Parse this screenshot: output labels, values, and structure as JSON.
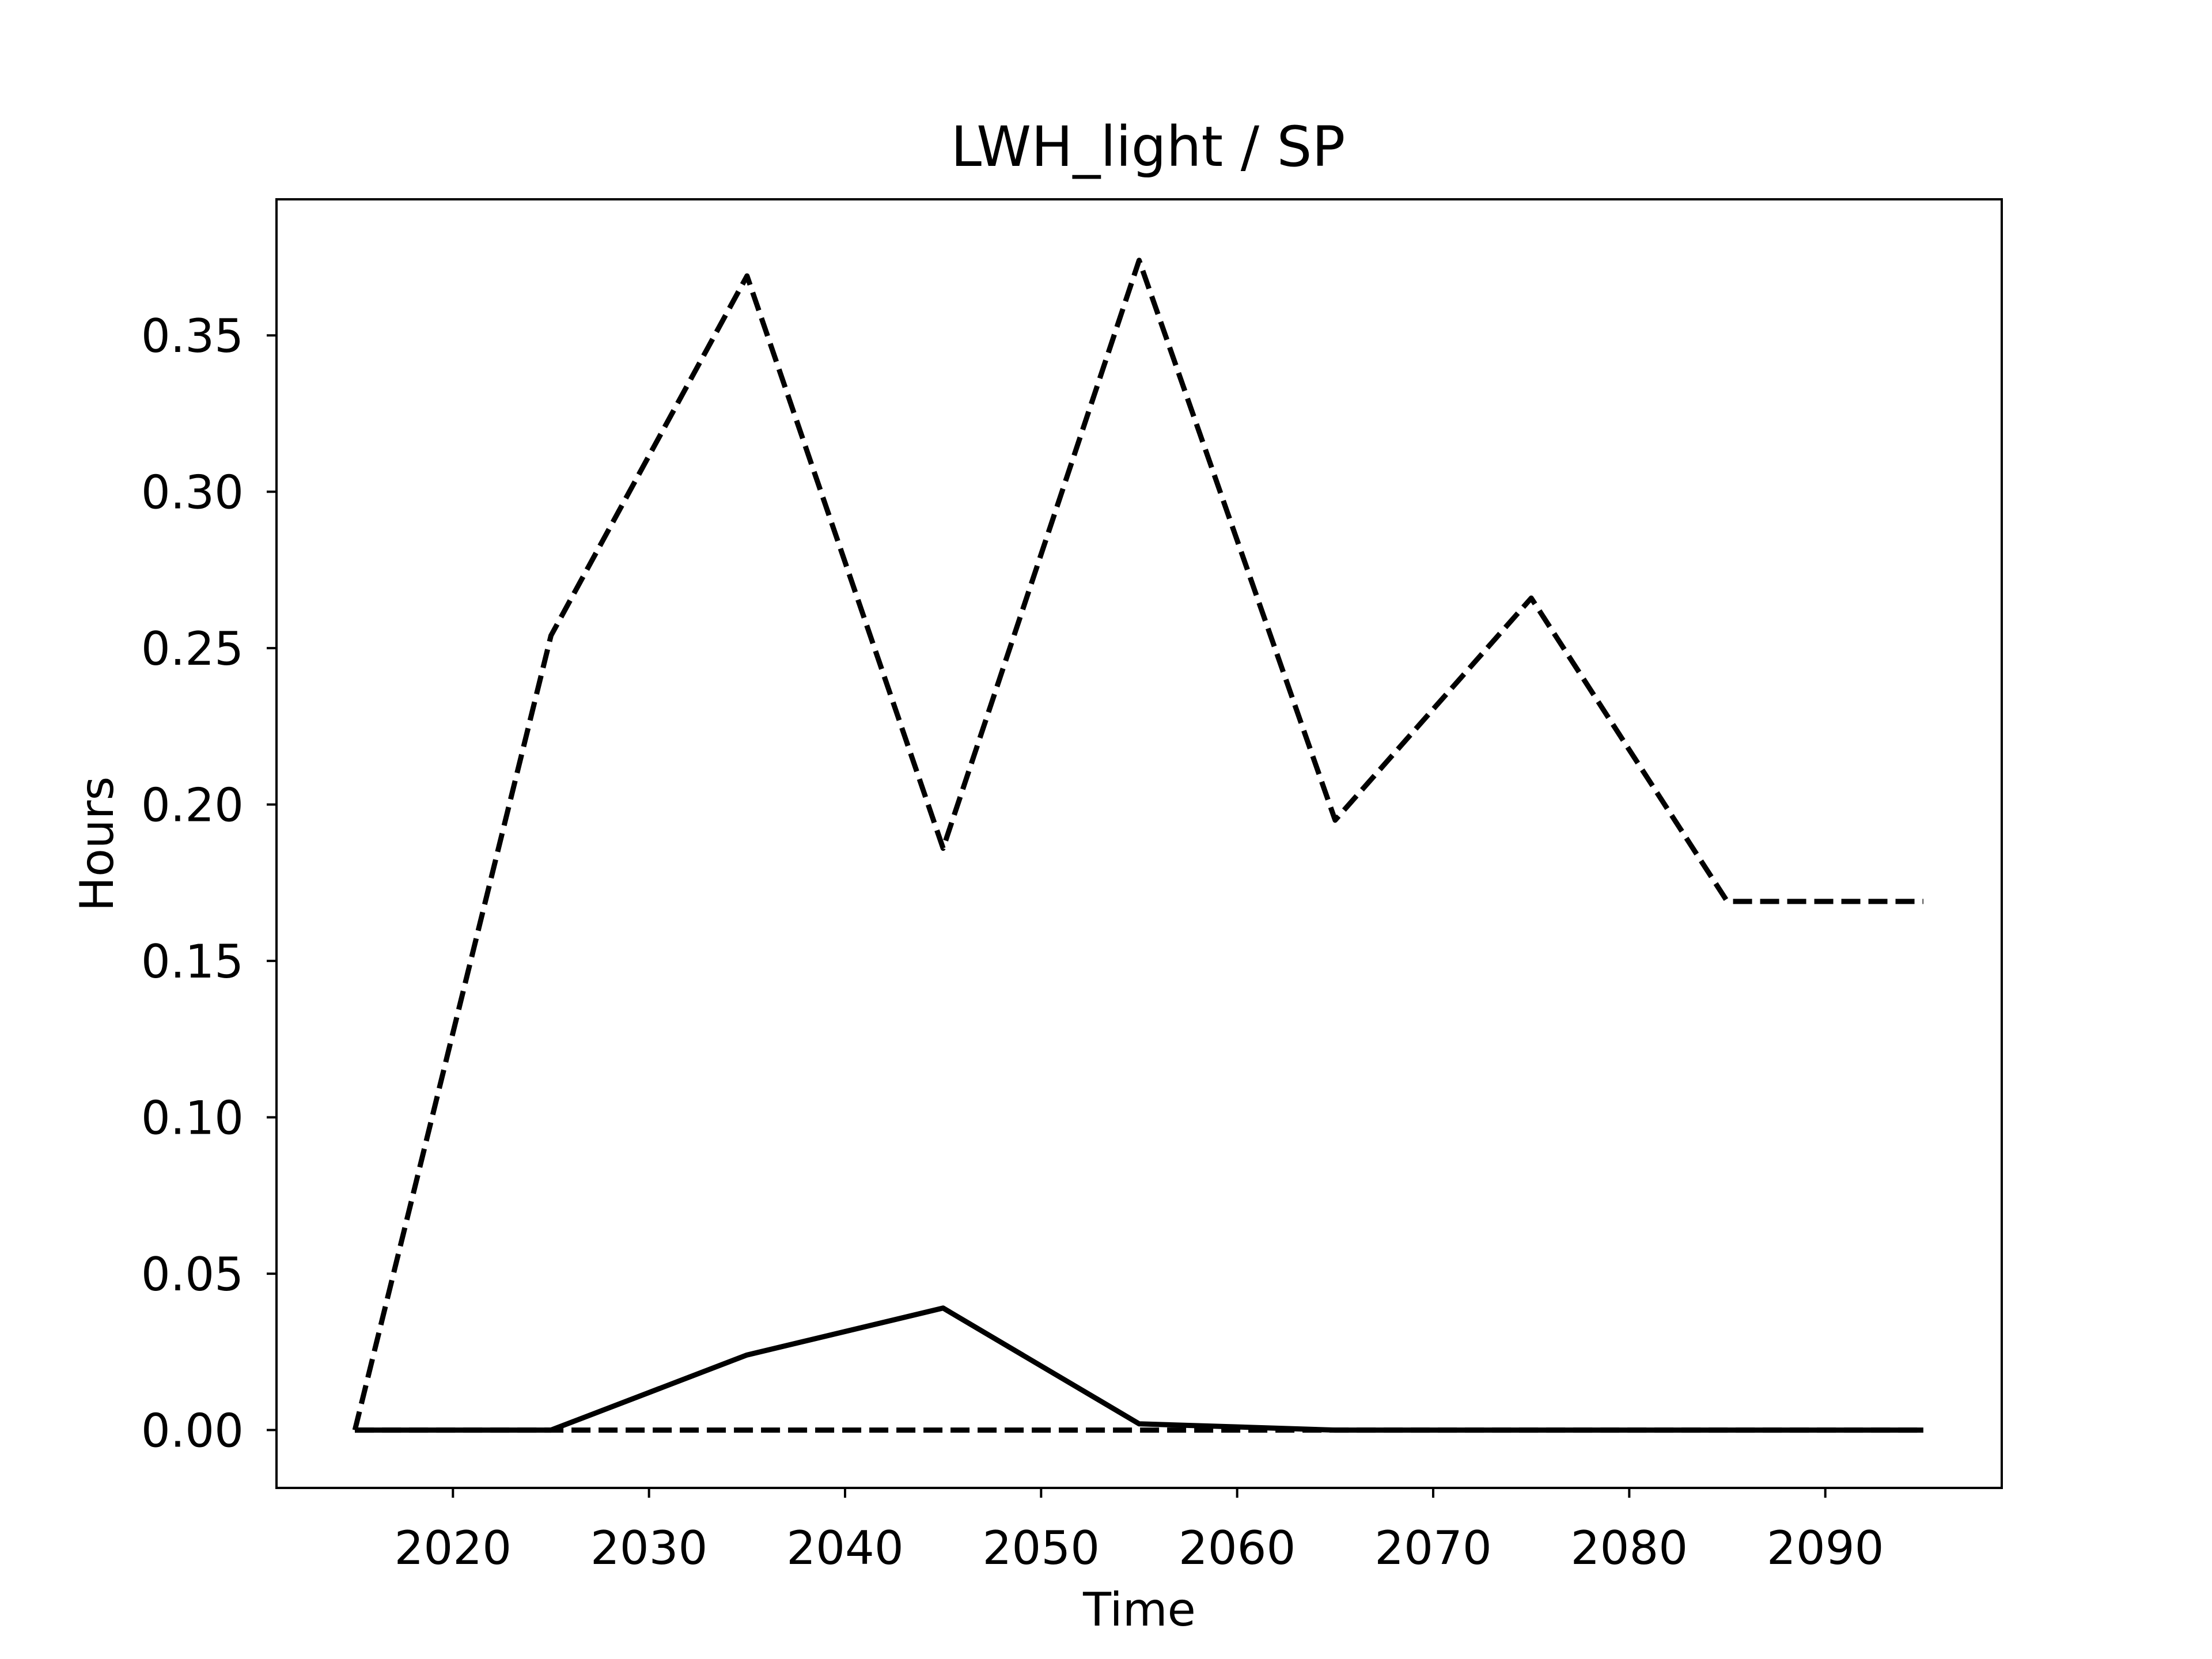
{
  "chart_data": {
    "type": "line",
    "title": "LWH_light / SP",
    "xlabel": "Time",
    "ylabel": "Hours",
    "xlim": [
      2011,
      2099
    ],
    "ylim": [
      -0.0185,
      0.3935
    ],
    "xticks": [
      2020,
      2030,
      2040,
      2050,
      2060,
      2070,
      2080,
      2090
    ],
    "xtick_labels": [
      "2020",
      "2030",
      "2040",
      "2050",
      "2060",
      "2070",
      "2080",
      "2090"
    ],
    "yticks": [
      0.0,
      0.05,
      0.1,
      0.15,
      0.2,
      0.25,
      0.3,
      0.35
    ],
    "ytick_labels": [
      "0.00",
      "0.05",
      "0.10",
      "0.15",
      "0.20",
      "0.25",
      "0.30",
      "0.35"
    ],
    "grid": false,
    "x": [
      2015,
      2025,
      2035,
      2045,
      2055,
      2065,
      2075,
      2085,
      2095
    ],
    "series": [
      {
        "style": "dashed",
        "color": "#000000",
        "values": [
          0.0,
          0.254,
          0.369,
          0.186,
          0.374,
          0.195,
          0.266,
          0.169,
          0.169
        ]
      },
      {
        "style": "solid",
        "color": "#000000",
        "values": [
          0.0,
          0.0,
          0.024,
          0.039,
          0.002,
          0.0,
          0.0,
          0.0,
          0.0
        ]
      },
      {
        "style": "dashed",
        "color": "#000000",
        "values": [
          0.0,
          0.0,
          0.0,
          0.0,
          0.0,
          0.0,
          0.0,
          0.0,
          0.0
        ]
      }
    ]
  }
}
